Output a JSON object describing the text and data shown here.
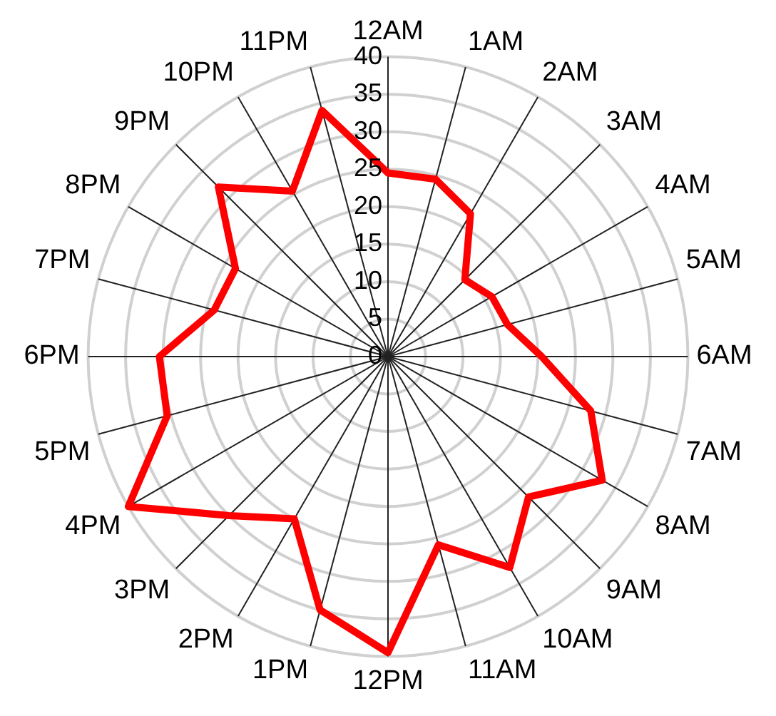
{
  "chart_data": {
    "type": "radar",
    "categories": [
      "12AM",
      "1AM",
      "2AM",
      "3AM",
      "4AM",
      "5AM",
      "6AM",
      "7AM",
      "8AM",
      "9AM",
      "10AM",
      "11AM",
      "12PM",
      "1PM",
      "2PM",
      "3PM",
      "4PM",
      "5PM",
      "6PM",
      "7PM",
      "8PM",
      "9PM",
      "10PM",
      "11PM"
    ],
    "series": [
      {
        "color": "#ff0000",
        "values": [
          24.5,
          24.5,
          22,
          14.5,
          16,
          16.5,
          20.5,
          28,
          33,
          26.5,
          32.5,
          26,
          39.5,
          35,
          25,
          30,
          40,
          30.5,
          30.5,
          24,
          23.5,
          32,
          25.5,
          34
        ]
      }
    ],
    "ylim": [
      0,
      40
    ],
    "yticks": [
      0,
      5,
      10,
      15,
      20,
      25,
      30,
      35,
      40
    ],
    "grid": true,
    "legend": false,
    "marker": "none",
    "line_style": "solid"
  }
}
